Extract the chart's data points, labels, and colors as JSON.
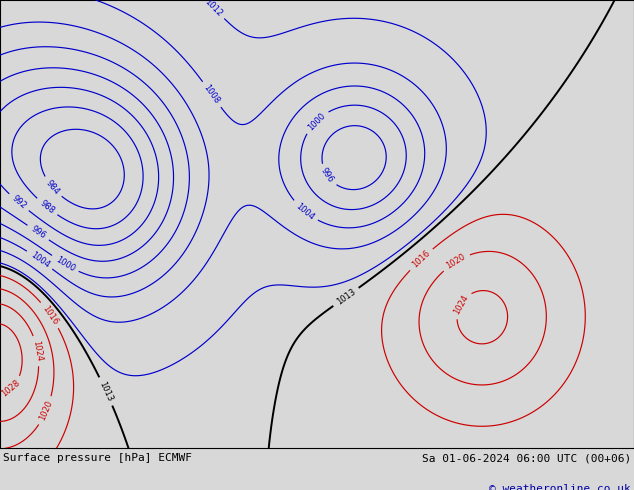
{
  "title_left": "Surface pressure [hPa] ECMWF",
  "title_right": "Sa 01-06-2024 06:00 UTC (00+06)",
  "copyright": "© weatheronline.co.uk",
  "bg_color": "#d8d8d8",
  "land_color": "#c8e8b0",
  "ocean_color": "#d8d8d8",
  "contour_blue_color": "#0000cc",
  "contour_black_color": "#000000",
  "contour_red_color": "#cc0000",
  "label_fontsize": 6,
  "title_fontsize": 8,
  "copyright_fontsize": 8,
  "xlim": [
    -175,
    -50
  ],
  "ylim": [
    12,
    80
  ],
  "isobar_step": 4,
  "isobar_min": 984,
  "isobar_max": 1032,
  "isobar_bold": 1013,
  "figw": 6.34,
  "figh": 4.9,
  "dpi": 100
}
